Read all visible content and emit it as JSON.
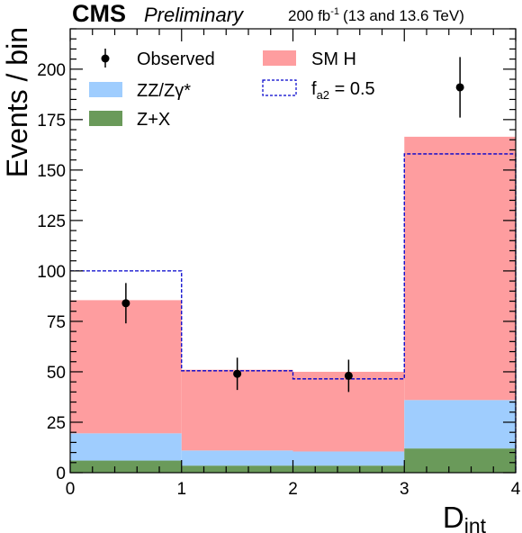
{
  "header": {
    "experiment": "CMS",
    "status": "Preliminary",
    "lumi_value": "200 fb",
    "lumi_exp": "-1",
    "energy": "(13 and 13.6 TeV)"
  },
  "chart_data": {
    "type": "bar",
    "stacked": true,
    "x_edges": [
      0,
      1,
      2,
      3,
      4
    ],
    "xlim": [
      0,
      4
    ],
    "ylim": [
      0,
      220
    ],
    "xlabel_main": "D",
    "xlabel_sub": "int",
    "ylabel": "Events / bin",
    "x_ticks": [
      "0",
      "1",
      "2",
      "3",
      "4"
    ],
    "y_ticks": [
      "0",
      "25",
      "50",
      "75",
      "100",
      "125",
      "150",
      "175",
      "200"
    ],
    "series": [
      {
        "name": "Z+X",
        "values": [
          6,
          3.5,
          3.5,
          12
        ],
        "color": "#6a9a5a"
      },
      {
        "name": "ZZ/Zγ*",
        "values": [
          13.5,
          7.5,
          7,
          24
        ],
        "color": "#9fcdfe"
      },
      {
        "name": "SM H",
        "values": [
          66,
          40,
          39.5,
          130.5
        ],
        "color": "#fe9d9f"
      }
    ],
    "alt_hypothesis": {
      "name": "f",
      "name_sub": "a2",
      "name_rest": " = 0.5",
      "values": [
        100,
        50.5,
        46.5,
        158
      ],
      "color": "#0000cc"
    },
    "observed": {
      "name": "Observed",
      "x": [
        0.5,
        1.5,
        2.5,
        3.5
      ],
      "y": [
        84,
        49,
        48,
        191
      ],
      "err_up": [
        10,
        8,
        8,
        15
      ],
      "err_down": [
        10,
        8,
        8,
        15
      ]
    },
    "legend_position": "top"
  }
}
